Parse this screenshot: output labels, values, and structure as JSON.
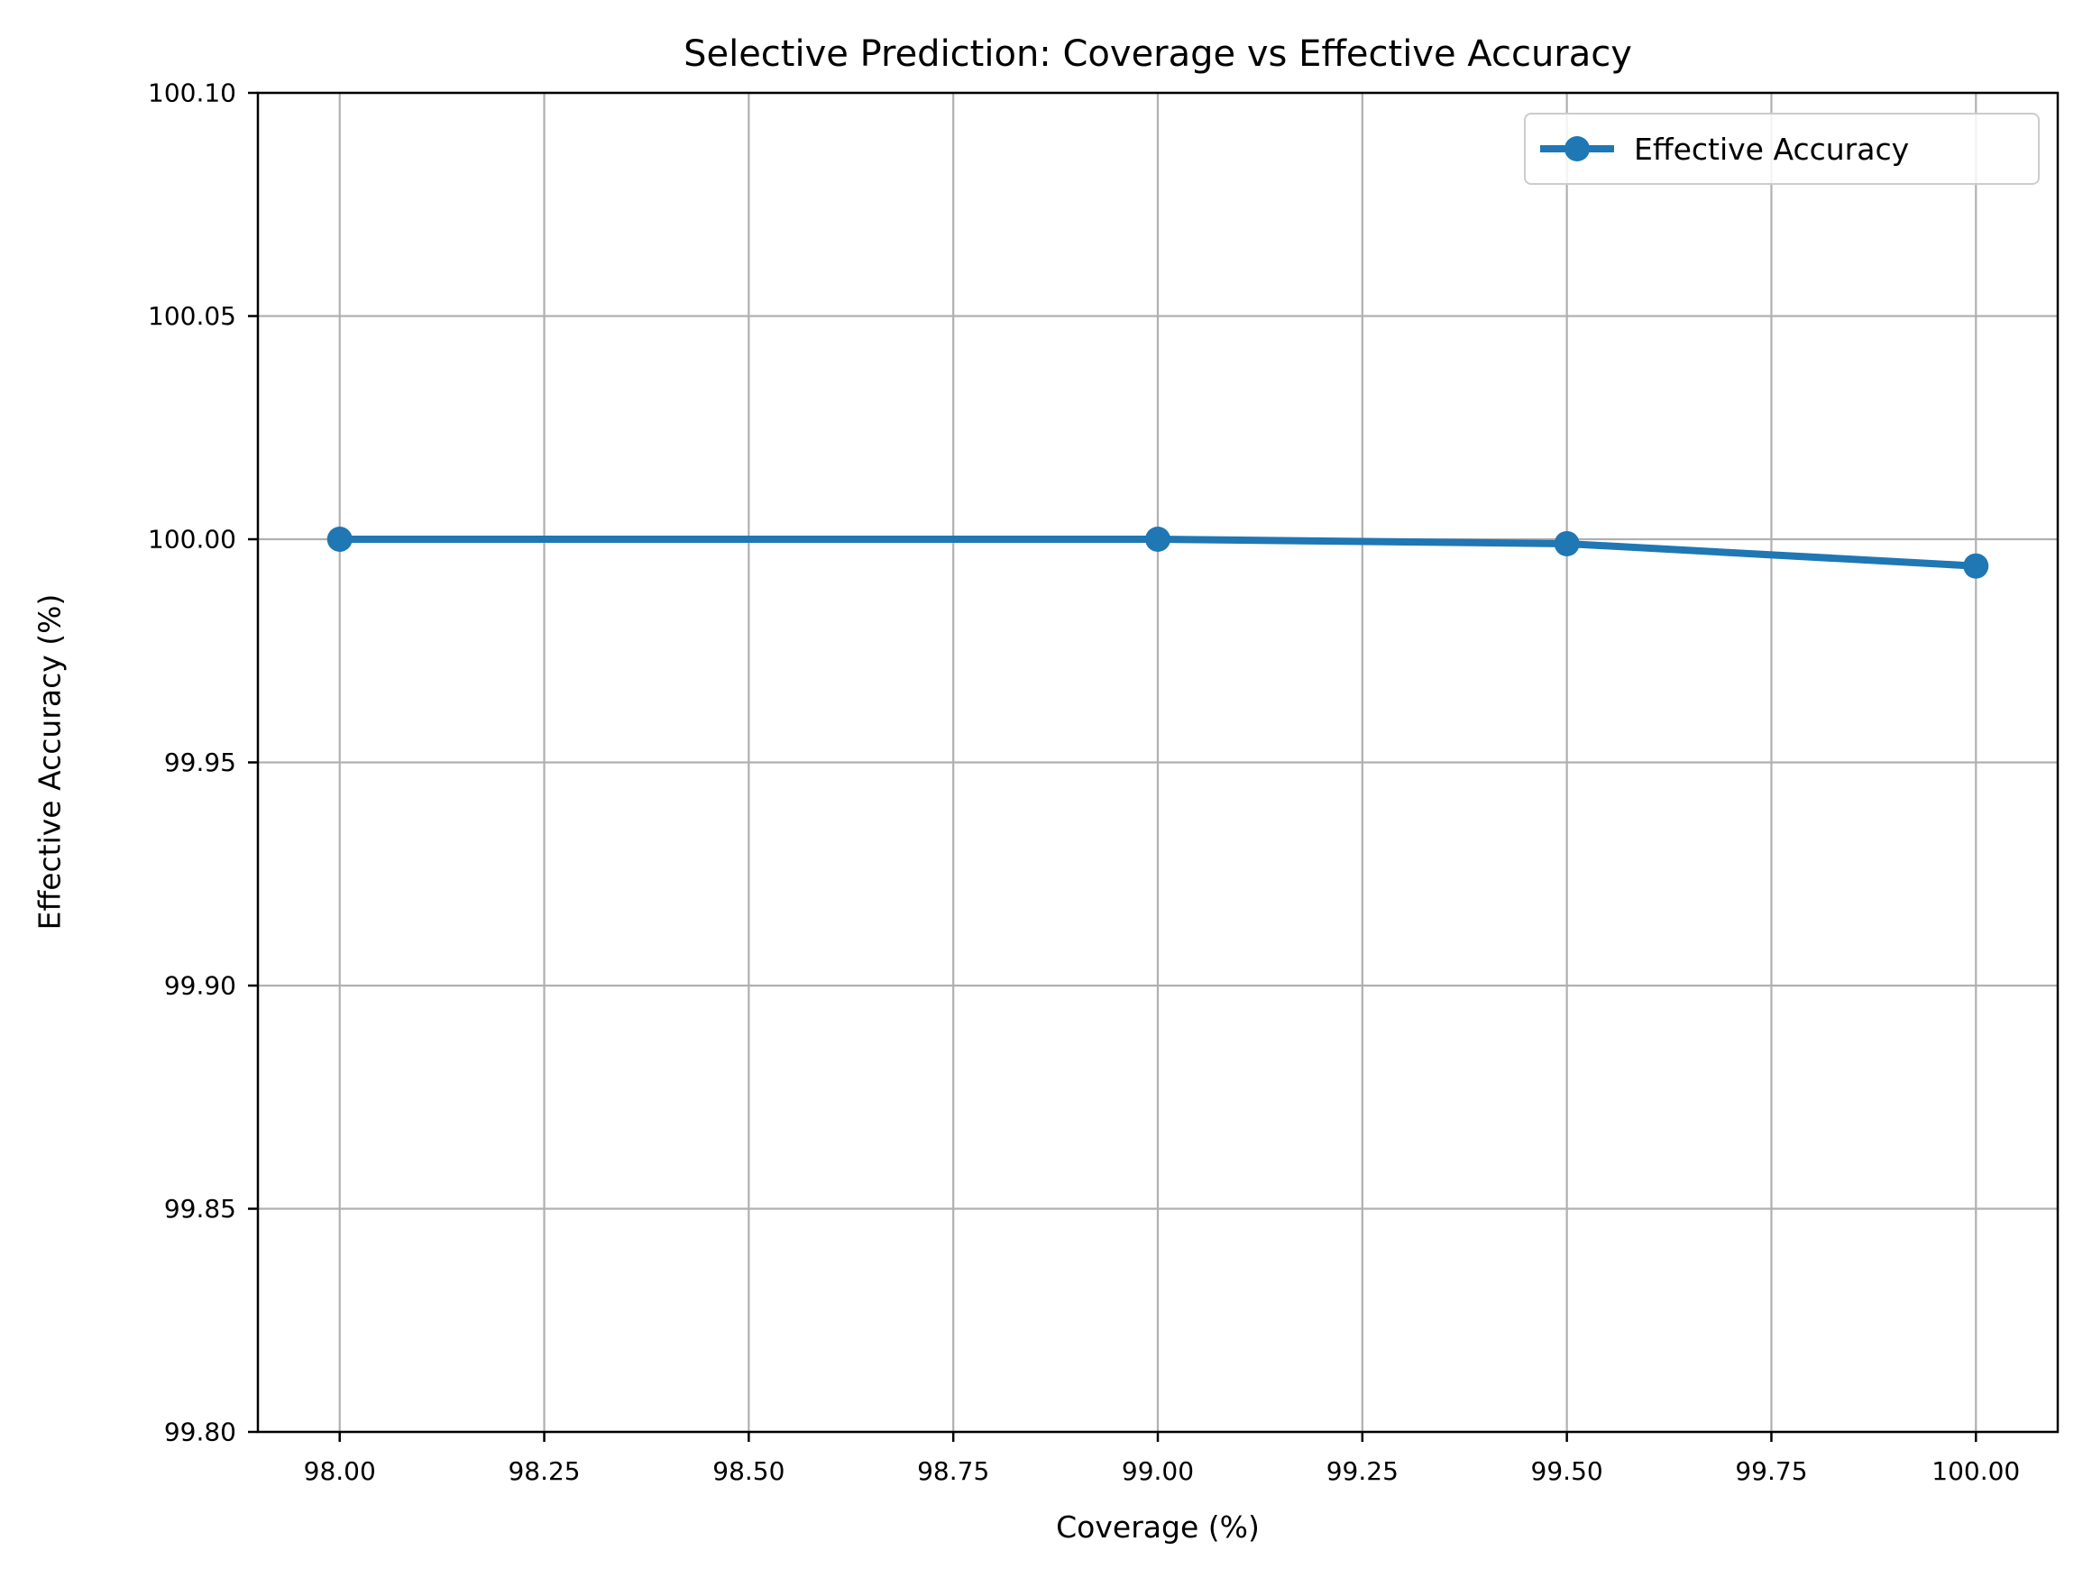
{
  "figure": {
    "background": "#ffffff"
  },
  "chart_data": {
    "type": "line",
    "title": "Selective Prediction: Coverage vs Effective Accuracy",
    "xlabel": "Coverage (%)",
    "ylabel": "Effective Accuracy (%)",
    "xlim": [
      97.9,
      100.1
    ],
    "ylim": [
      99.8,
      100.1
    ],
    "x_ticks": [
      98.0,
      98.25,
      98.5,
      98.75,
      99.0,
      99.25,
      99.5,
      99.75,
      100.0
    ],
    "x_tick_labels": [
      "98.00",
      "98.25",
      "98.50",
      "98.75",
      "99.00",
      "99.25",
      "99.50",
      "99.75",
      "100.00"
    ],
    "y_ticks": [
      99.8,
      99.85,
      99.9,
      99.95,
      100.0,
      100.05,
      100.1
    ],
    "y_tick_labels": [
      "99.80",
      "99.85",
      "99.90",
      "99.95",
      "100.00",
      "100.05",
      "100.10"
    ],
    "grid": true,
    "legend": {
      "position": "upper right",
      "entries": [
        "Effective Accuracy"
      ]
    },
    "series": [
      {
        "name": "Effective Accuracy",
        "color": "#1f77b4",
        "marker": "circle",
        "x": [
          98.0,
          99.0,
          99.5,
          100.0
        ],
        "y": [
          100.0,
          100.0,
          99.999,
          99.994
        ]
      }
    ],
    "colors": {
      "grid": "#b0b0b0",
      "spine": "#000000",
      "text": "#000000"
    }
  }
}
